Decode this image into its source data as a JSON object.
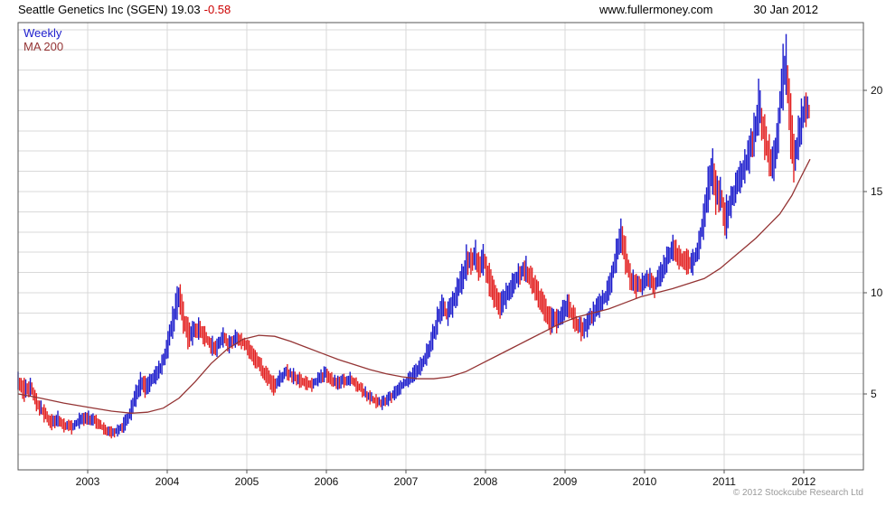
{
  "header": {
    "title": "Seattle Genetics Inc (SGEN) 19.03",
    "change": "-0.58",
    "site": "www.fullermoney.com",
    "date": "30 Jan 2012"
  },
  "legend": {
    "series1": "Weekly",
    "series2": "MA 200"
  },
  "footer": {
    "copyright": "© 2012 Stockcube Research Ltd"
  },
  "chart_data": {
    "type": "bar",
    "subtype": "weekly-price-range-with-moving-average",
    "title": "Seattle Genetics Inc (SGEN)",
    "last_close": 19.03,
    "change": -0.58,
    "frequency": "weekly",
    "legend_position": "top-left-inside",
    "grid": true,
    "x_axis": {
      "domain": [
        2002.125,
        2012.75
      ],
      "ticks": [
        2003,
        2004,
        2005,
        2006,
        2007,
        2008,
        2009,
        2010,
        2011,
        2012
      ]
    },
    "y_axis": {
      "domain": [
        1.25,
        23.35
      ],
      "ticks": [
        5,
        10,
        15,
        20
      ],
      "grid_step": 1,
      "side": "right"
    },
    "colors": {
      "up": "#1c1ccc",
      "down": "#e32222",
      "ma": "#943434",
      "grid": "#d9d9d9",
      "axis": "#555555",
      "text": "#111111",
      "negative": "#cc0000"
    },
    "series": [
      {
        "name": "Weekly",
        "role": "price"
      },
      {
        "name": "MA 200",
        "role": "moving-average"
      }
    ],
    "price_envelope": [
      [
        2002.13,
        5.2,
        6.1
      ],
      [
        2002.2,
        4.6,
        5.8
      ],
      [
        2002.28,
        4.9,
        5.8
      ],
      [
        2002.36,
        4.1,
        5.0
      ],
      [
        2002.45,
        3.6,
        4.5
      ],
      [
        2002.55,
        3.2,
        4.0
      ],
      [
        2002.62,
        3.4,
        4.2
      ],
      [
        2002.7,
        3.1,
        3.8
      ],
      [
        2002.8,
        3.0,
        3.7
      ],
      [
        2002.9,
        3.3,
        4.1
      ],
      [
        2003.0,
        3.5,
        4.2
      ],
      [
        2003.1,
        3.3,
        4.0
      ],
      [
        2003.2,
        3.0,
        3.6
      ],
      [
        2003.3,
        2.8,
        3.4
      ],
      [
        2003.38,
        2.9,
        3.5
      ],
      [
        2003.46,
        3.1,
        3.9
      ],
      [
        2003.54,
        3.6,
        4.6
      ],
      [
        2003.6,
        4.3,
        5.4
      ],
      [
        2003.66,
        4.9,
        6.1
      ],
      [
        2003.72,
        4.8,
        5.9
      ],
      [
        2003.78,
        5.1,
        6.0
      ],
      [
        2003.86,
        5.5,
        6.4
      ],
      [
        2003.94,
        6.0,
        7.0
      ],
      [
        2004.0,
        6.6,
        7.9
      ],
      [
        2004.06,
        7.6,
        9.2
      ],
      [
        2004.12,
        8.6,
        10.3
      ],
      [
        2004.16,
        9.0,
        10.5
      ],
      [
        2004.2,
        8.0,
        9.6
      ],
      [
        2004.26,
        7.2,
        8.8
      ],
      [
        2004.32,
        7.4,
        8.6
      ],
      [
        2004.4,
        7.7,
        8.8
      ],
      [
        2004.48,
        7.3,
        8.3
      ],
      [
        2004.56,
        6.9,
        7.9
      ],
      [
        2004.62,
        6.8,
        7.7
      ],
      [
        2004.7,
        7.3,
        8.3
      ],
      [
        2004.78,
        7.0,
        7.9
      ],
      [
        2004.86,
        7.3,
        8.2
      ],
      [
        2004.94,
        7.2,
        8.0
      ],
      [
        2005.02,
        6.8,
        7.7
      ],
      [
        2005.1,
        6.3,
        7.2
      ],
      [
        2005.18,
        5.9,
        6.8
      ],
      [
        2005.26,
        5.4,
        6.3
      ],
      [
        2005.34,
        4.9,
        5.9
      ],
      [
        2005.42,
        5.4,
        6.2
      ],
      [
        2005.5,
        5.7,
        6.5
      ],
      [
        2005.58,
        5.5,
        6.3
      ],
      [
        2005.66,
        5.3,
        6.1
      ],
      [
        2005.74,
        5.2,
        5.9
      ],
      [
        2005.82,
        5.1,
        5.8
      ],
      [
        2005.9,
        5.4,
        6.1
      ],
      [
        2005.98,
        5.6,
        6.4
      ],
      [
        2006.06,
        5.4,
        6.1
      ],
      [
        2006.14,
        5.2,
        5.9
      ],
      [
        2006.22,
        5.3,
        6.0
      ],
      [
        2006.3,
        5.4,
        6.1
      ],
      [
        2006.38,
        5.1,
        5.8
      ],
      [
        2006.46,
        4.8,
        5.5
      ],
      [
        2006.54,
        4.5,
        5.2
      ],
      [
        2006.62,
        4.3,
        5.0
      ],
      [
        2006.7,
        4.2,
        4.9
      ],
      [
        2006.78,
        4.4,
        5.1
      ],
      [
        2006.86,
        4.7,
        5.4
      ],
      [
        2006.94,
        5.0,
        5.7
      ],
      [
        2007.02,
        5.3,
        6.0
      ],
      [
        2007.1,
        5.6,
        6.4
      ],
      [
        2007.18,
        5.9,
        6.8
      ],
      [
        2007.26,
        6.4,
        7.5
      ],
      [
        2007.34,
        7.2,
        8.5
      ],
      [
        2007.4,
        8.0,
        9.4
      ],
      [
        2007.46,
        8.7,
        10.0
      ],
      [
        2007.52,
        8.3,
        9.5
      ],
      [
        2007.58,
        8.7,
        10.0
      ],
      [
        2007.64,
        9.3,
        10.7
      ],
      [
        2007.7,
        9.9,
        11.4
      ],
      [
        2007.76,
        10.6,
        12.4
      ],
      [
        2007.82,
        10.9,
        12.2
      ],
      [
        2007.87,
        11.2,
        12.7
      ],
      [
        2007.92,
        10.5,
        11.9
      ],
      [
        2007.98,
        10.9,
        12.5
      ],
      [
        2008.04,
        9.9,
        11.6
      ],
      [
        2008.1,
        9.3,
        10.7
      ],
      [
        2008.18,
        8.7,
        10.0
      ],
      [
        2008.26,
        9.2,
        10.5
      ],
      [
        2008.34,
        9.8,
        11.0
      ],
      [
        2008.42,
        10.3,
        11.5
      ],
      [
        2008.5,
        10.6,
        11.9
      ],
      [
        2008.58,
        10.0,
        11.3
      ],
      [
        2008.66,
        9.3,
        10.6
      ],
      [
        2008.74,
        8.6,
        9.9
      ],
      [
        2008.82,
        7.9,
        9.3
      ],
      [
        2008.9,
        8.0,
        9.2
      ],
      [
        2008.98,
        8.5,
        9.7
      ],
      [
        2009.04,
        8.8,
        10.0
      ],
      [
        2009.12,
        8.1,
        9.3
      ],
      [
        2009.2,
        7.6,
        8.8
      ],
      [
        2009.28,
        7.8,
        9.0
      ],
      [
        2009.36,
        8.4,
        9.6
      ],
      [
        2009.44,
        8.8,
        10.0
      ],
      [
        2009.52,
        9.3,
        10.5
      ],
      [
        2009.58,
        9.9,
        11.2
      ],
      [
        2009.64,
        10.9,
        12.6
      ],
      [
        2009.7,
        12.0,
        13.7
      ],
      [
        2009.76,
        10.9,
        12.8
      ],
      [
        2009.82,
        10.1,
        11.4
      ],
      [
        2009.9,
        9.7,
        10.9
      ],
      [
        2009.98,
        9.9,
        11.0
      ],
      [
        2010.06,
        10.2,
        11.3
      ],
      [
        2010.12,
        9.7,
        10.7
      ],
      [
        2010.2,
        10.3,
        11.5
      ],
      [
        2010.28,
        11.0,
        12.3
      ],
      [
        2010.36,
        11.6,
        12.9
      ],
      [
        2010.44,
        11.1,
        12.3
      ],
      [
        2010.52,
        10.9,
        12.2
      ],
      [
        2010.6,
        10.8,
        12.1
      ],
      [
        2010.68,
        11.6,
        13.0
      ],
      [
        2010.74,
        12.6,
        14.4
      ],
      [
        2010.8,
        14.0,
        16.3
      ],
      [
        2010.85,
        15.0,
        17.3
      ],
      [
        2010.9,
        13.7,
        15.9
      ],
      [
        2010.96,
        14.1,
        15.7
      ],
      [
        2011.02,
        12.5,
        14.8
      ],
      [
        2011.08,
        13.6,
        15.2
      ],
      [
        2011.14,
        14.4,
        15.9
      ],
      [
        2011.2,
        14.9,
        16.5
      ],
      [
        2011.26,
        15.4,
        17.1
      ],
      [
        2011.32,
        15.9,
        17.8
      ],
      [
        2011.38,
        16.8,
        19.0
      ],
      [
        2011.44,
        17.9,
        20.8
      ],
      [
        2011.5,
        16.7,
        19.0
      ],
      [
        2011.56,
        15.8,
        17.9
      ],
      [
        2011.62,
        15.4,
        17.4
      ],
      [
        2011.68,
        16.8,
        19.0
      ],
      [
        2011.74,
        19.0,
        22.3
      ],
      [
        2011.78,
        19.8,
        22.8
      ],
      [
        2011.83,
        16.8,
        20.2
      ],
      [
        2011.88,
        15.3,
        17.6
      ],
      [
        2011.93,
        16.5,
        18.7
      ],
      [
        2011.98,
        17.5,
        19.8
      ],
      [
        2012.03,
        18.2,
        19.9
      ],
      [
        2012.08,
        18.4,
        19.6
      ]
    ],
    "ma200": [
      [
        2002.13,
        5.0
      ],
      [
        2002.4,
        4.8
      ],
      [
        2002.7,
        4.55
      ],
      [
        2003.0,
        4.35
      ],
      [
        2003.3,
        4.15
      ],
      [
        2003.55,
        4.05
      ],
      [
        2003.75,
        4.1
      ],
      [
        2003.95,
        4.3
      ],
      [
        2004.15,
        4.8
      ],
      [
        2004.35,
        5.6
      ],
      [
        2004.55,
        6.5
      ],
      [
        2004.75,
        7.2
      ],
      [
        2004.95,
        7.7
      ],
      [
        2005.15,
        7.9
      ],
      [
        2005.35,
        7.85
      ],
      [
        2005.55,
        7.6
      ],
      [
        2005.75,
        7.3
      ],
      [
        2005.95,
        7.0
      ],
      [
        2006.15,
        6.7
      ],
      [
        2006.35,
        6.45
      ],
      [
        2006.55,
        6.2
      ],
      [
        2006.75,
        6.0
      ],
      [
        2006.95,
        5.85
      ],
      [
        2007.15,
        5.75
      ],
      [
        2007.35,
        5.75
      ],
      [
        2007.55,
        5.85
      ],
      [
        2007.75,
        6.1
      ],
      [
        2007.95,
        6.5
      ],
      [
        2008.15,
        6.9
      ],
      [
        2008.35,
        7.3
      ],
      [
        2008.55,
        7.7
      ],
      [
        2008.75,
        8.1
      ],
      [
        2008.95,
        8.5
      ],
      [
        2009.15,
        8.8
      ],
      [
        2009.35,
        9.0
      ],
      [
        2009.55,
        9.2
      ],
      [
        2009.75,
        9.5
      ],
      [
        2009.95,
        9.8
      ],
      [
        2010.15,
        10.0
      ],
      [
        2010.35,
        10.2
      ],
      [
        2010.55,
        10.45
      ],
      [
        2010.75,
        10.7
      ],
      [
        2010.95,
        11.2
      ],
      [
        2011.1,
        11.7
      ],
      [
        2011.25,
        12.2
      ],
      [
        2011.4,
        12.7
      ],
      [
        2011.55,
        13.3
      ],
      [
        2011.7,
        13.9
      ],
      [
        2011.85,
        14.8
      ],
      [
        2011.95,
        15.6
      ],
      [
        2012.08,
        16.6
      ]
    ]
  }
}
